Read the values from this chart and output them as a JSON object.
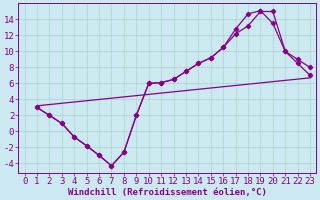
{
  "xlabel": "Windchill (Refroidissement éolien,°C)",
  "background_color": "#cce8f0",
  "grid_color": "#aad4cc",
  "line_color": "#880088",
  "spine_color": "#7700aa",
  "xlim": [
    -0.5,
    23.5
  ],
  "ylim": [
    -5.2,
    16.0
  ],
  "xticks": [
    0,
    1,
    2,
    3,
    4,
    5,
    6,
    7,
    8,
    9,
    10,
    11,
    12,
    13,
    14,
    15,
    16,
    17,
    18,
    19,
    20,
    21,
    22,
    23
  ],
  "yticks": [
    -4,
    -2,
    0,
    2,
    4,
    6,
    8,
    10,
    12,
    14
  ],
  "line1_x": [
    1,
    2,
    3,
    4,
    5,
    6,
    7,
    8,
    9,
    10,
    11,
    12,
    13,
    14,
    15,
    16,
    17,
    18,
    19,
    20,
    21,
    22,
    23
  ],
  "line1_y": [
    3,
    2,
    1,
    -0.7,
    -1.8,
    -3.0,
    -4.3,
    -2.6,
    2.0,
    6.0,
    6.1,
    6.5,
    7.5,
    8.5,
    9.2,
    10.5,
    12.2,
    13.2,
    15.0,
    15.0,
    10.0,
    9.0,
    8.0
  ],
  "line2_x": [
    1,
    2,
    3,
    4,
    5,
    6,
    7,
    8,
    9,
    10,
    11,
    12,
    13,
    14,
    15,
    16,
    17,
    18,
    19,
    20,
    21,
    22,
    23
  ],
  "line2_y": [
    3,
    2,
    1,
    -0.7,
    -1.8,
    -3.0,
    -4.3,
    -2.6,
    2.0,
    6.0,
    6.1,
    6.5,
    7.5,
    8.5,
    9.2,
    10.5,
    12.8,
    14.7,
    15.1,
    13.5,
    10.0,
    8.5,
    7.0
  ],
  "line3_x": [
    1,
    23
  ],
  "line3_y": [
    3.2,
    6.7
  ],
  "tick_fontsize": 6.5,
  "xlabel_fontsize": 6.5
}
